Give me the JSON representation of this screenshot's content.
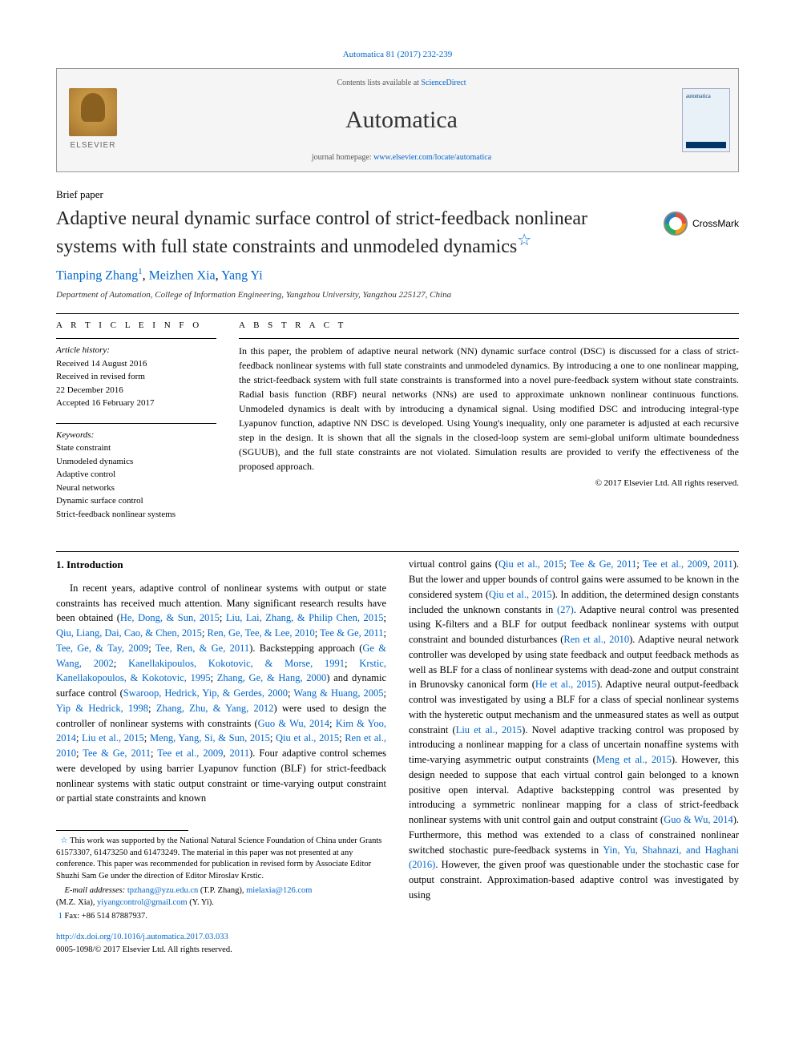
{
  "citation": {
    "journal_link": "Automatica",
    "volume": "81 (2017) 232-239",
    "full": "Automatica 81 (2017) 232-239"
  },
  "header": {
    "publisher": "ELSEVIER",
    "contents_prefix": "Contents lists available at ",
    "contents_link": "ScienceDirect",
    "journal": "Automatica",
    "homepage_prefix": "journal homepage: ",
    "homepage_link": "www.elsevier.com/locate/automatica",
    "cover_label": "automatica"
  },
  "paper_type": "Brief paper",
  "title": "Adaptive neural dynamic surface control of strict-feedback nonlinear systems with full state constraints and unmodeled dynamics",
  "title_star": "☆",
  "crossmark": "CrossMark",
  "authors": {
    "a1": "Tianping Zhang",
    "a1_sup": "1",
    "sep1": ", ",
    "a2": "Meizhen Xia",
    "sep2": ", ",
    "a3": "Yang Yi"
  },
  "affiliation": "Department of Automation, College of Information Engineering, Yangzhou University, Yangzhou 225127, China",
  "info": {
    "label": "A R T I C L E   I N F O",
    "history_heading": "Article history:",
    "received": "Received 14 August 2016",
    "revised_label": "Received in revised form",
    "revised_date": "22 December 2016",
    "accepted": "Accepted 16 February 2017",
    "keywords_heading": "Keywords:",
    "kw1": "State constraint",
    "kw2": "Unmodeled dynamics",
    "kw3": "Adaptive control",
    "kw4": "Neural networks",
    "kw5": "Dynamic surface control",
    "kw6": "Strict-feedback nonlinear systems"
  },
  "abstract": {
    "label": "A B S T R A C T",
    "text_pre": "In this paper, the problem of adaptive neural network (NN) dynamic surface control (DSC) is discussed for a class of strict-feedback nonlinear systems with full state constraints and unmodeled dynamics. By introducing a one to one nonlinear mapping, the strict-feedback system with full state constraints is transformed into a novel pure-feedback system without state constraints. Radial basis function (RBF) neural networks (NNs) are used to approximate unknown nonlinear continuous functions. Unmodeled dynamics is dealt with by introducing a dynamical signal. Using modified DSC and introducing integral-type Lyapunov function, adaptive NN DSC is developed. Using Young's inequality, only one parameter is adjusted at each recursive step in the design. It is shown that all the signals in the closed-loop system are semi-global uniform ultimate boundedness (SGUUB), and the full state constraints are not violated. Simulation results are provided to verify the effectiveness of the proposed approach.",
    "copyright": "© 2017 Elsevier Ltd. All rights reserved."
  },
  "section1_heading": "1. Introduction",
  "body": {
    "col1": {
      "intro": "In recent years, adaptive control of nonlinear systems with output or state constraints has received much attention. Many significant research results have been obtained (",
      "r1": "He, Dong, & Sun, 2015",
      "s1": "; ",
      "r2": "Liu, Lai, Zhang, & Philip Chen, 2015",
      "s2": "; ",
      "r3": "Qiu, Liang, Dai, Cao, & Chen, 2015",
      "s3": "; ",
      "r4": "Ren, Ge, Tee, & Lee, 2010",
      "s4": "; ",
      "r5": "Tee & Ge, 2011",
      "s5": "; ",
      "r6": "Tee, Ge, & Tay, 2009",
      "s6": "; ",
      "r7": "Tee, Ren, & Ge, 2011",
      "t1": "). Backstepping approach (",
      "r8": "Ge & Wang, 2002",
      "s7": "; ",
      "r9": "Kanellakipoulos, Kokotovic, & Morse, 1991",
      "s8": "; ",
      "r10": "Krstic, Kanellakopoulos, & Kokotovic, 1995",
      "s9": "; ",
      "r11": "Zhang, Ge, & Hang, 2000",
      "t2": ") and dynamic surface control (",
      "r12": "Swaroop, Hedrick, Yip, & Gerdes, 2000",
      "s10": "; ",
      "r13": "Wang & Huang, 2005",
      "s11": "; ",
      "r14": "Yip & Hedrick, 1998",
      "s12": "; ",
      "r15": "Zhang, Zhu, & Yang, 2012",
      "t3": ") were used to design the controller of nonlinear systems with constraints (",
      "r16": "Guo & Wu, 2014",
      "s13": "; ",
      "r17": "Kim & Yoo, 2014",
      "s14": "; ",
      "r18": "Liu et al., 2015",
      "s15": "; ",
      "r19": "Meng, Yang, Si, & Sun, 2015",
      "s16": "; ",
      "r20": "Qiu et al., 2015",
      "s17": "; ",
      "r21": "Ren et al., 2010",
      "s18": "; ",
      "r22": "Tee & Ge, 2011",
      "s19": "; ",
      "r23": "Tee et al., 2009",
      "s20": ", ",
      "r24": "2011",
      "t4": "). Four adaptive control schemes were developed by using barrier Lyapunov function (BLF) for strict-feedback nonlinear systems with static output constraint or time-varying output constraint or partial state constraints and known"
    },
    "col2": {
      "t1": "virtual control gains (",
      "r1": "Qiu et al., 2015",
      "s1": "; ",
      "r2": "Tee & Ge, 2011",
      "s2": "; ",
      "r3": "Tee et al., 2009",
      "s3": ", ",
      "r4": "2011",
      "t2": "). But the lower and upper bounds of control gains were assumed to be known in the considered system (",
      "r5": "Qiu et al., 2015",
      "t3": "). In addition, the determined design constants included the unknown constants in ",
      "r6": "(27)",
      "t4": ". Adaptive neural control was presented using K-filters and a BLF for output feedback nonlinear systems with output constraint and bounded disturbances (",
      "r7": "Ren et al., 2010",
      "t5": "). Adaptive neural network controller was developed by using state feedback and output feedback methods as well as BLF for a class of nonlinear systems with dead-zone and output constraint in Brunovsky canonical form (",
      "r8": "He et al., 2015",
      "t6": "). Adaptive neural output-feedback control was investigated by using a BLF for a class of special nonlinear systems with the hysteretic output mechanism and the unmeasured states as well as output constraint (",
      "r9": "Liu et al., 2015",
      "t7": "). Novel adaptive tracking control was proposed by introducing a nonlinear mapping for a class of uncertain nonaffine systems with time-varying asymmetric output constraints (",
      "r10": "Meng et al., 2015",
      "t8": "). However, this design needed to suppose that each virtual control gain belonged to a known positive open interval. Adaptive backstepping control was presented by introducing a symmetric nonlinear mapping for a class of strict-feedback nonlinear systems with unit control gain and output constraint (",
      "r11": "Guo & Wu, 2014",
      "t9": "). Furthermore, this method was extended to a class of constrained nonlinear switched stochastic pure-feedback systems in ",
      "r12": "Yin, Yu, Shahnazi, and Haghani",
      "s4": " ",
      "r13": "(2016)",
      "t10": ". However, the given proof was questionable under the stochastic case for output constraint. Approximation-based adaptive control was investigated by using"
    }
  },
  "footnotes": {
    "star": "☆",
    "fn_star": " This work was supported by the National Natural Science Foundation of China under Grants 61573307, 61473250 and 61473249. The material in this paper was not presented at any conference. This paper was recommended for publication in revised form by Associate Editor Shuzhi Sam Ge under the direction of Editor Miroslav Krstic.",
    "email_label": "E-mail addresses: ",
    "e1": "tpzhang@yzu.edu.cn",
    "e1_who": " (T.P. Zhang), ",
    "e2": "mielaxia@126.com",
    "e2_who": " (M.Z. Xia), ",
    "e3": "yiyangcontrol@gmail.com",
    "e3_who": " (Y. Yi).",
    "fn1_marker": "1",
    "fn1": " Fax: +86 514 87887937.",
    "doi": "http://dx.doi.org/10.1016/j.automatica.2017.03.033",
    "issn": "0005-1098/© 2017 Elsevier Ltd. All rights reserved."
  },
  "colors": {
    "link": "#0066cc",
    "text": "#000000",
    "header_bg": "#f5f5f5",
    "border": "#999999"
  }
}
